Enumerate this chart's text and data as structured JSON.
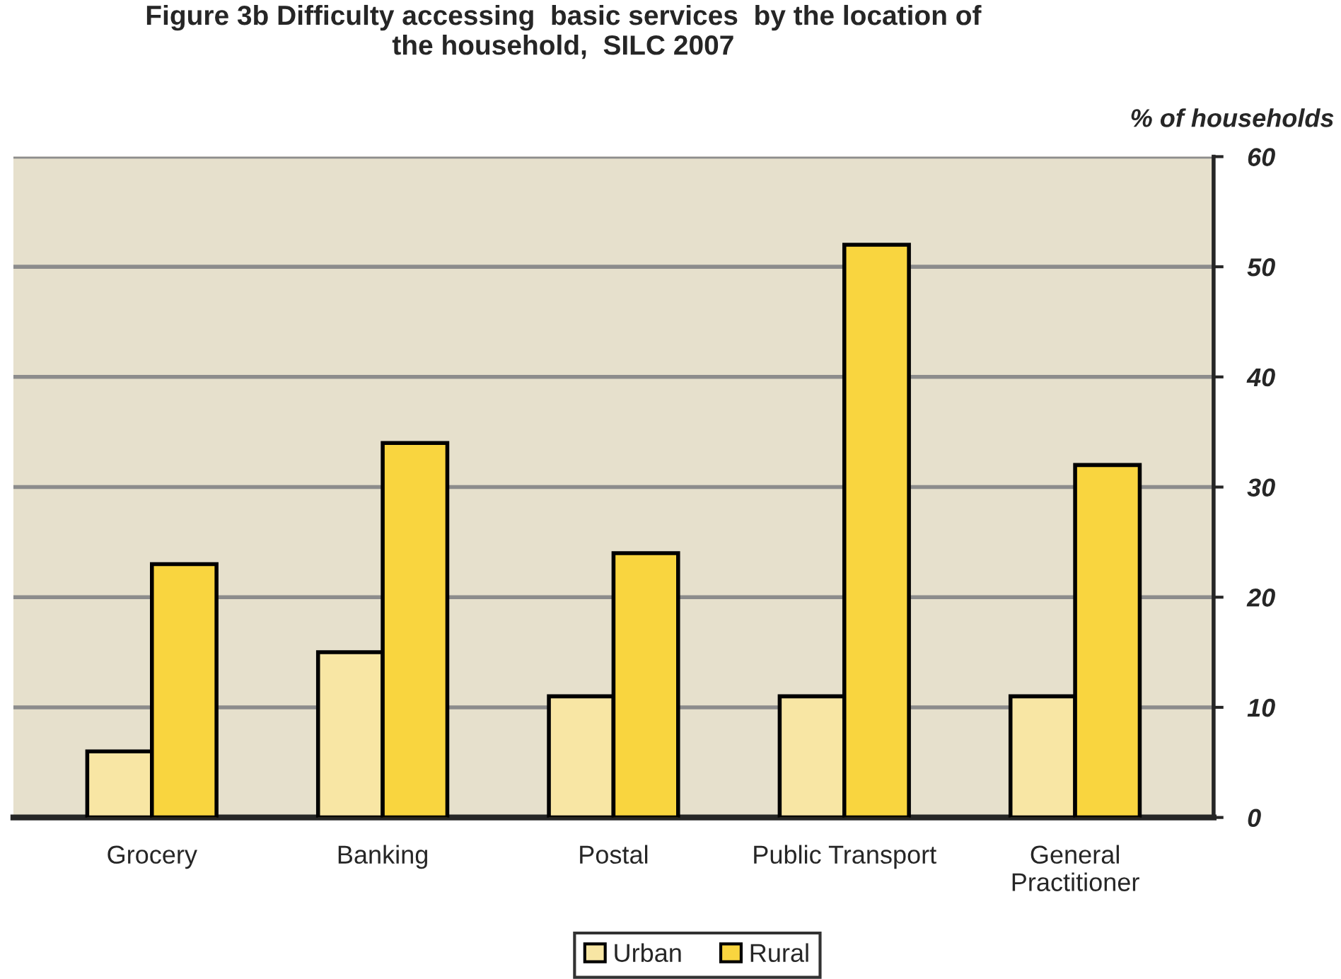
{
  "chart_data": {
    "type": "bar",
    "title": "Figure 3b Difficulty accessing  basic services  by the location of\nthe household,  SILC 2007",
    "ylabel": "% of households",
    "categories": [
      "Grocery",
      "Banking",
      "Postal",
      "Public Transport",
      "General\nPractitioner"
    ],
    "series": [
      {
        "name": "Urban",
        "color": "#f8e6a4",
        "values": [
          6,
          15,
          11,
          11,
          11
        ]
      },
      {
        "name": "Rural",
        "color": "#f9d53f",
        "values": [
          23,
          34,
          24,
          52,
          32
        ]
      }
    ],
    "ylim": [
      0,
      60
    ],
    "yticks": [
      0,
      10,
      20,
      30,
      40,
      50,
      60
    ],
    "grid": "y",
    "legend": "bottom"
  }
}
